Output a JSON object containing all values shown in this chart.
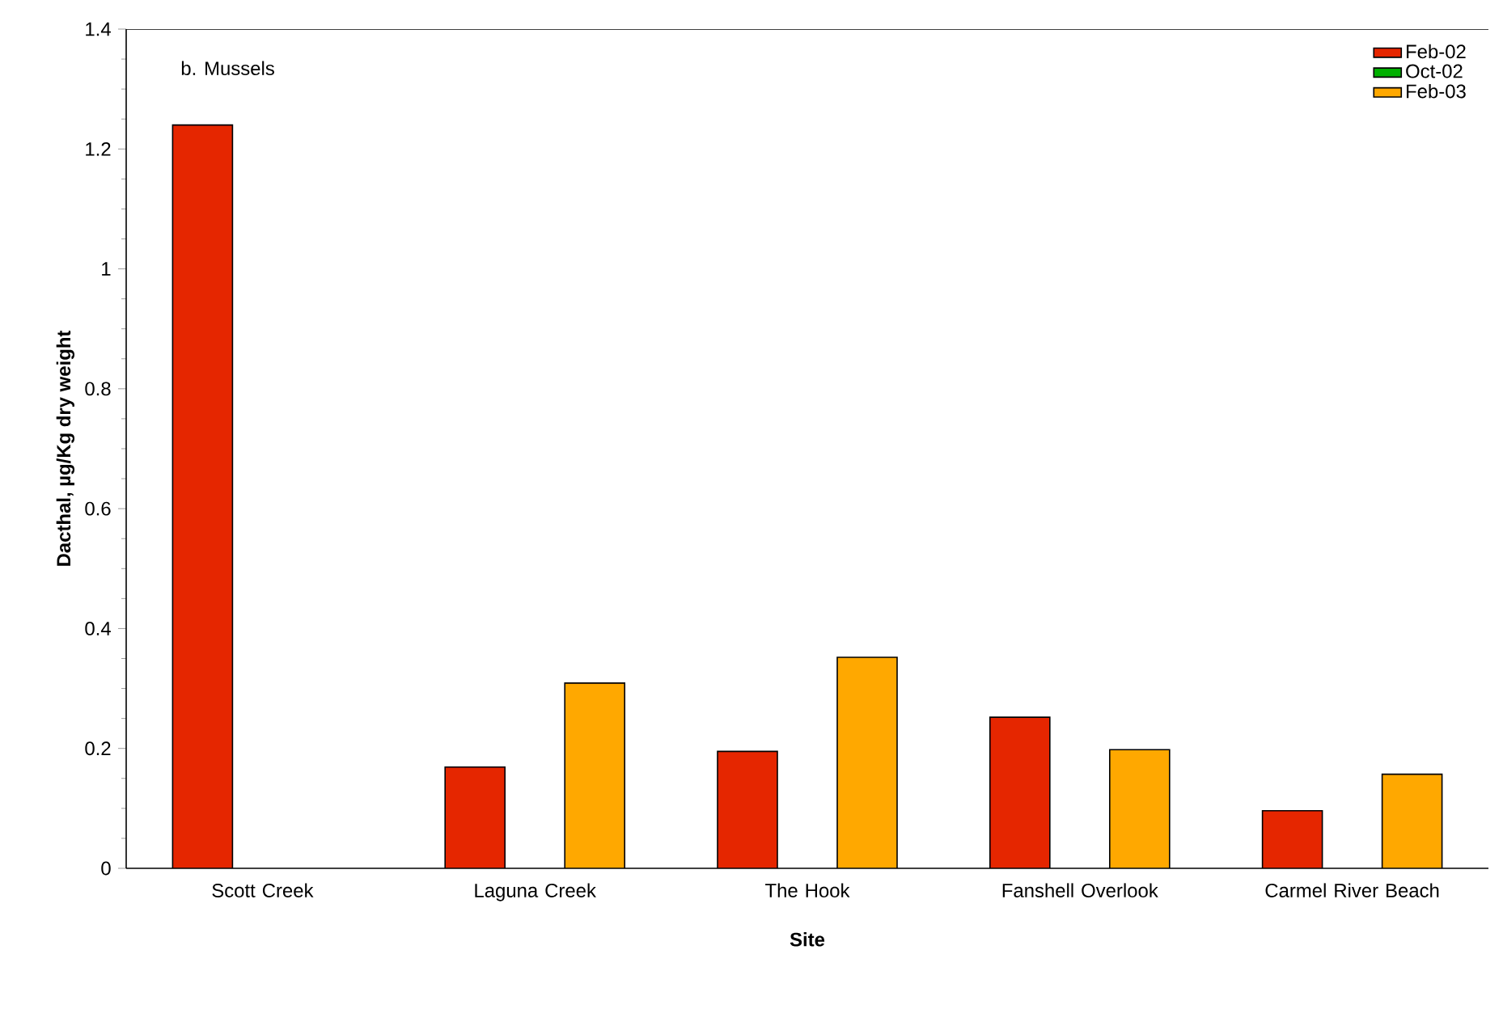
{
  "chart_data": {
    "type": "bar",
    "annotations": [
      "b. Mussels"
    ],
    "xlabel": "Site",
    "ylabel": "Dacthal, µg/Kg dry weight",
    "categories": [
      "Scott Creek",
      "Laguna Creek",
      "The Hook",
      "Fanshell Overlook",
      "Carmel River Beach"
    ],
    "series": [
      {
        "name": "Feb-02",
        "color": "#e52600",
        "values": [
          1.24,
          0.169,
          0.195,
          0.252,
          0.096
        ]
      },
      {
        "name": "Oct-02",
        "color": "#00b000",
        "values": [
          null,
          null,
          null,
          null,
          null
        ]
      },
      {
        "name": "Feb-03",
        "color": "#ffa800",
        "values": [
          null,
          0.309,
          0.352,
          0.198,
          0.157
        ]
      }
    ],
    "ylim": [
      0,
      1.4
    ],
    "yticks": [
      0,
      0.2,
      0.4,
      0.6,
      0.8,
      1,
      1.2,
      1.4
    ],
    "legend": "top right",
    "grid": false
  }
}
